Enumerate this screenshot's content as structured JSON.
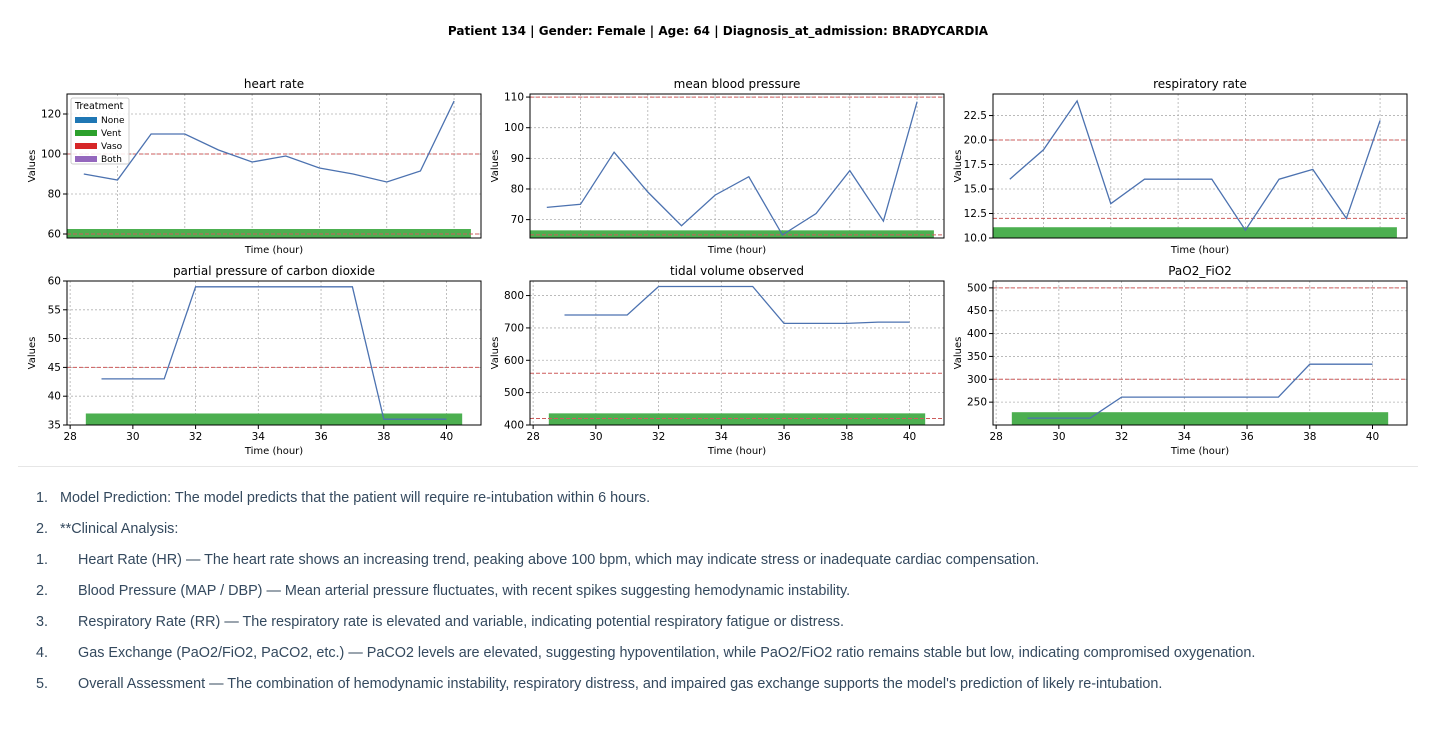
{
  "header": {
    "title": "Patient 134 | Gender: Female | Age: 64 | Diagnosis_at_admission: BRADYCARDIA"
  },
  "legend": {
    "title": "Treatment",
    "items": [
      {
        "label": "None",
        "color": "#1f77b4"
      },
      {
        "label": "Vent",
        "color": "#2ca02c"
      },
      {
        "label": "Vaso",
        "color": "#d62728"
      },
      {
        "label": "Both",
        "color": "#9467bd"
      }
    ]
  },
  "colors": {
    "line": "#4c72b0",
    "threshold": "#cd5c5c",
    "vent_bar": "#4caf50",
    "grid": "#b0b0b0"
  },
  "chart_data": [
    {
      "type": "line",
      "title": "heart rate",
      "xlabel": "Time (hour)",
      "ylabel": "Values",
      "xlim": [
        28.5,
        40.8
      ],
      "ylim": [
        58,
        130
      ],
      "xticks": [],
      "yticks": [
        60,
        80,
        100,
        120
      ],
      "ytick_labels": [
        "60",
        "80",
        "100",
        "120"
      ],
      "x": [
        29,
        30,
        31,
        32,
        33,
        34,
        35,
        36,
        37,
        38,
        39,
        40
      ],
      "values": [
        90,
        87,
        110,
        110,
        102,
        96,
        99,
        93,
        90,
        86,
        91.5,
        126.5
      ],
      "thresholds": [
        100,
        60
      ],
      "treatment_bar": {
        "label": "Vent",
        "x_start": 28.5,
        "x_end": 40.5,
        "value": 62.5
      },
      "show_legend": true,
      "grid": true
    },
    {
      "type": "line",
      "title": "mean blood pressure",
      "xlabel": "Time (hour)",
      "ylabel": "Values",
      "xlim": [
        28.5,
        40.8
      ],
      "ylim": [
        64,
        111
      ],
      "xticks": [],
      "yticks": [
        70,
        80,
        90,
        100,
        110
      ],
      "ytick_labels": [
        "70",
        "80",
        "90",
        "100",
        "110"
      ],
      "x": [
        29,
        30,
        31,
        32,
        33,
        34,
        35,
        36,
        37,
        38,
        39,
        40
      ],
      "values": [
        74,
        75,
        92,
        79,
        68,
        78,
        84,
        65,
        72,
        86,
        69.5,
        108.5
      ],
      "thresholds": [
        110,
        65
      ],
      "treatment_bar": {
        "label": "Vent",
        "x_start": 28.5,
        "x_end": 40.5,
        "value": 66.5
      },
      "show_legend": false,
      "grid": true
    },
    {
      "type": "line",
      "title": "respiratory rate",
      "xlabel": "Time (hour)",
      "ylabel": "Values",
      "xlim": [
        28.5,
        40.8
      ],
      "ylim": [
        10,
        24.7
      ],
      "xticks": [],
      "yticks": [
        10,
        12.5,
        15,
        17.5,
        20,
        22.5
      ],
      "ytick_labels": [
        "10.0",
        "12.5",
        "15.0",
        "17.5",
        "20.0",
        "22.5"
      ],
      "x": [
        29,
        30,
        31,
        32,
        33,
        34,
        35,
        36,
        37,
        38,
        39,
        40
      ],
      "values": [
        16,
        19,
        24,
        13.5,
        16,
        16,
        16,
        10.8,
        16,
        17,
        12,
        22
      ],
      "thresholds": [
        20,
        12
      ],
      "treatment_bar": {
        "label": "Vent",
        "x_start": 28.5,
        "x_end": 40.5,
        "value": 11.1
      },
      "show_legend": false,
      "grid": true
    },
    {
      "type": "line",
      "title": "partial pressure of carbon dioxide",
      "xlabel": "Time (hour)",
      "ylabel": "Values",
      "xlim": [
        27.9,
        41.1
      ],
      "ylim": [
        35,
        60
      ],
      "xticks": [
        28,
        30,
        32,
        34,
        36,
        38,
        40
      ],
      "xtick_labels": [
        "28",
        "30",
        "32",
        "34",
        "36",
        "38",
        "40"
      ],
      "yticks": [
        35,
        40,
        45,
        50,
        55,
        60
      ],
      "ytick_labels": [
        "35",
        "40",
        "45",
        "50",
        "55",
        "60"
      ],
      "x": [
        29,
        30,
        31,
        32,
        33,
        34,
        35,
        36,
        37,
        38,
        39,
        40
      ],
      "values": [
        43,
        43,
        43,
        59,
        59,
        59,
        59,
        59,
        59,
        36,
        36,
        36
      ],
      "thresholds": [
        45,
        35
      ],
      "treatment_bar": {
        "label": "Vent",
        "x_start": 28.5,
        "x_end": 40.5,
        "value": 37
      },
      "show_legend": false,
      "grid": true
    },
    {
      "type": "line",
      "title": "tidal volume observed",
      "xlabel": "Time (hour)",
      "ylabel": "Values",
      "xlim": [
        27.9,
        41.1
      ],
      "ylim": [
        400,
        845
      ],
      "xticks": [
        28,
        30,
        32,
        34,
        36,
        38,
        40
      ],
      "xtick_labels": [
        "28",
        "30",
        "32",
        "34",
        "36",
        "38",
        "40"
      ],
      "yticks": [
        400,
        500,
        600,
        700,
        800
      ],
      "ytick_labels": [
        "400",
        "500",
        "600",
        "700",
        "800"
      ],
      "x": [
        29,
        30,
        31,
        32,
        33,
        34,
        35,
        36,
        37,
        38,
        39,
        40
      ],
      "values": [
        740,
        740,
        740,
        828,
        828,
        828,
        828,
        714,
        714,
        714,
        718,
        718
      ],
      "thresholds": [
        560,
        420
      ],
      "treatment_bar": {
        "label": "Vent",
        "x_start": 28.5,
        "x_end": 40.5,
        "value": 436
      },
      "show_legend": false,
      "grid": true
    },
    {
      "type": "line",
      "title": "PaO2_FiO2",
      "xlabel": "Time (hour)",
      "ylabel": "Values",
      "xlim": [
        27.9,
        41.1
      ],
      "ylim": [
        200,
        515
      ],
      "xticks": [
        28,
        30,
        32,
        34,
        36,
        38,
        40
      ],
      "xtick_labels": [
        "28",
        "30",
        "32",
        "34",
        "36",
        "38",
        "40"
      ],
      "yticks": [
        250,
        300,
        350,
        400,
        450,
        500
      ],
      "ytick_labels": [
        "250",
        "300",
        "350",
        "400",
        "450",
        "500"
      ],
      "x": [
        29,
        30,
        31,
        32,
        33,
        34,
        35,
        36,
        37,
        38,
        39,
        40
      ],
      "values": [
        215,
        215,
        215,
        261,
        261,
        261,
        261,
        261,
        261,
        333,
        333,
        333
      ],
      "thresholds": [
        500,
        300
      ],
      "treatment_bar": {
        "label": "Vent",
        "x_start": 28.5,
        "x_end": 40.5,
        "value": 228
      },
      "show_legend": false,
      "grid": true
    }
  ],
  "analysis": {
    "items": [
      {
        "number": "1.",
        "text": "Model Prediction: The model predicts that the patient will require re-intubation within 6 hours."
      },
      {
        "number": "2.",
        "text": "**Clinical Analysis:"
      },
      {
        "number": "1.",
        "text": "Heart Rate (HR) — The heart rate shows an increasing trend, peaking above 100 bpm, which may indicate stress or inadequate cardiac compensation."
      },
      {
        "number": "2.",
        "text": "Blood Pressure (MAP / DBP) — Mean arterial pressure fluctuates, with recent spikes suggesting hemodynamic instability."
      },
      {
        "number": "3.",
        "text": "Respiratory Rate (RR) — The respiratory rate is elevated and variable, indicating potential respiratory fatigue or distress."
      },
      {
        "number": "4.",
        "text": "Gas Exchange (PaO2/FiO2, PaCO2, etc.) — PaCO2 levels are elevated, suggesting hypoventilation, while PaO2/FiO2 ratio remains stable but low, indicating compromised oxygenation."
      },
      {
        "number": "5.",
        "text": "Overall Assessment — The combination of hemodynamic instability, respiratory distress, and impaired gas exchange supports the model's prediction of likely re-intubation."
      }
    ]
  }
}
